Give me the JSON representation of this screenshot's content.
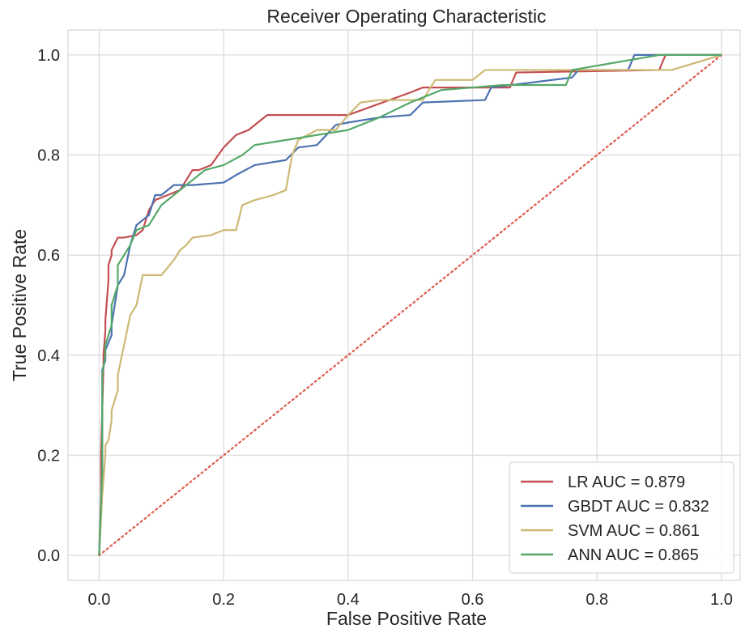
{
  "chart_data": {
    "type": "line",
    "title": "Receiver Operating Characteristic",
    "xlabel": "False Positive Rate",
    "ylabel": "True Positive Rate",
    "xlim": [
      -0.05,
      1.03
    ],
    "ylim": [
      -0.05,
      1.05
    ],
    "xticks": [
      0.0,
      0.2,
      0.4,
      0.6,
      0.8,
      1.0
    ],
    "yticks": [
      0.0,
      0.2,
      0.4,
      0.6,
      0.8,
      1.0
    ],
    "xtick_labels": [
      "0.0",
      "0.2",
      "0.4",
      "0.6",
      "0.8",
      "1.0"
    ],
    "ytick_labels": [
      "0.0",
      "0.2",
      "0.4",
      "0.6",
      "0.8",
      "1.0"
    ],
    "grid": true,
    "legend_position": "lower-right",
    "background_color": "#ffffff",
    "grid_color": "#dcdcdc",
    "series": [
      {
        "name": "LR AUC = 0.879",
        "color": "#c44e52",
        "x": [
          0,
          0.003,
          0.003,
          0.007,
          0.007,
          0.01,
          0.01,
          0.015,
          0.015,
          0.02,
          0.02,
          0.03,
          0.04,
          0.06,
          0.07,
          0.08,
          0.09,
          0.1,
          0.13,
          0.15,
          0.16,
          0.18,
          0.2,
          0.22,
          0.24,
          0.26,
          0.27,
          0.4,
          0.5,
          0.52,
          0.66,
          0.67,
          0.9,
          0.91,
          1.0
        ],
        "y": [
          0,
          0.12,
          0.2,
          0.38,
          0.4,
          0.45,
          0.47,
          0.55,
          0.58,
          0.6,
          0.61,
          0.635,
          0.635,
          0.64,
          0.65,
          0.69,
          0.71,
          0.715,
          0.73,
          0.77,
          0.77,
          0.78,
          0.815,
          0.84,
          0.85,
          0.87,
          0.88,
          0.88,
          0.925,
          0.935,
          0.935,
          0.965,
          0.97,
          1.0,
          1.0
        ]
      },
      {
        "name": "GBDT AUC = 0.832",
        "color": "#4c72b0",
        "x": [
          0,
          0.005,
          0.005,
          0.01,
          0.01,
          0.02,
          0.02,
          0.03,
          0.04,
          0.05,
          0.06,
          0.07,
          0.08,
          0.09,
          0.1,
          0.12,
          0.15,
          0.2,
          0.22,
          0.25,
          0.3,
          0.32,
          0.35,
          0.38,
          0.4,
          0.45,
          0.5,
          0.52,
          0.62,
          0.63,
          0.76,
          0.77,
          0.85,
          0.86,
          0.91,
          0.92,
          1.0
        ],
        "y": [
          0,
          0.17,
          0.37,
          0.39,
          0.41,
          0.44,
          0.46,
          0.54,
          0.56,
          0.62,
          0.66,
          0.67,
          0.68,
          0.72,
          0.72,
          0.74,
          0.74,
          0.745,
          0.76,
          0.78,
          0.79,
          0.815,
          0.82,
          0.86,
          0.865,
          0.875,
          0.88,
          0.905,
          0.91,
          0.935,
          0.955,
          0.97,
          0.97,
          1.0,
          1.0,
          1.0,
          1.0
        ]
      },
      {
        "name": "SVM AUC = 0.861",
        "color": "#ccb974",
        "x": [
          0,
          0.005,
          0.01,
          0.01,
          0.015,
          0.02,
          0.02,
          0.03,
          0.03,
          0.04,
          0.05,
          0.06,
          0.07,
          0.09,
          0.1,
          0.12,
          0.13,
          0.14,
          0.15,
          0.18,
          0.2,
          0.22,
          0.23,
          0.25,
          0.28,
          0.3,
          0.31,
          0.32,
          0.35,
          0.38,
          0.4,
          0.42,
          0.45,
          0.52,
          0.54,
          0.6,
          0.62,
          0.7,
          0.9,
          0.92,
          1.0
        ],
        "y": [
          0,
          0.12,
          0.2,
          0.22,
          0.23,
          0.27,
          0.29,
          0.33,
          0.36,
          0.42,
          0.48,
          0.5,
          0.56,
          0.56,
          0.56,
          0.59,
          0.61,
          0.62,
          0.635,
          0.64,
          0.65,
          0.65,
          0.7,
          0.71,
          0.72,
          0.73,
          0.8,
          0.83,
          0.85,
          0.85,
          0.88,
          0.905,
          0.91,
          0.91,
          0.95,
          0.95,
          0.97,
          0.97,
          0.97,
          0.97,
          1.0
        ]
      },
      {
        "name": "ANN AUC = 0.865",
        "color": "#55a868",
        "x": [
          0,
          0.005,
          0.005,
          0.01,
          0.01,
          0.02,
          0.02,
          0.03,
          0.03,
          0.04,
          0.05,
          0.06,
          0.08,
          0.1,
          0.12,
          0.15,
          0.17,
          0.2,
          0.23,
          0.25,
          0.3,
          0.35,
          0.4,
          0.45,
          0.5,
          0.55,
          0.6,
          0.65,
          0.75,
          0.76,
          0.9,
          1.0
        ],
        "y": [
          0,
          0.17,
          0.36,
          0.4,
          0.42,
          0.46,
          0.5,
          0.54,
          0.58,
          0.6,
          0.62,
          0.65,
          0.66,
          0.7,
          0.72,
          0.75,
          0.77,
          0.78,
          0.8,
          0.82,
          0.83,
          0.84,
          0.85,
          0.875,
          0.905,
          0.93,
          0.935,
          0.94,
          0.94,
          0.97,
          1.0,
          1.0
        ]
      }
    ],
    "reference_line": {
      "x": [
        0,
        1
      ],
      "y": [
        0,
        1
      ],
      "color": "#dd5a4a",
      "style": "dotted"
    }
  }
}
